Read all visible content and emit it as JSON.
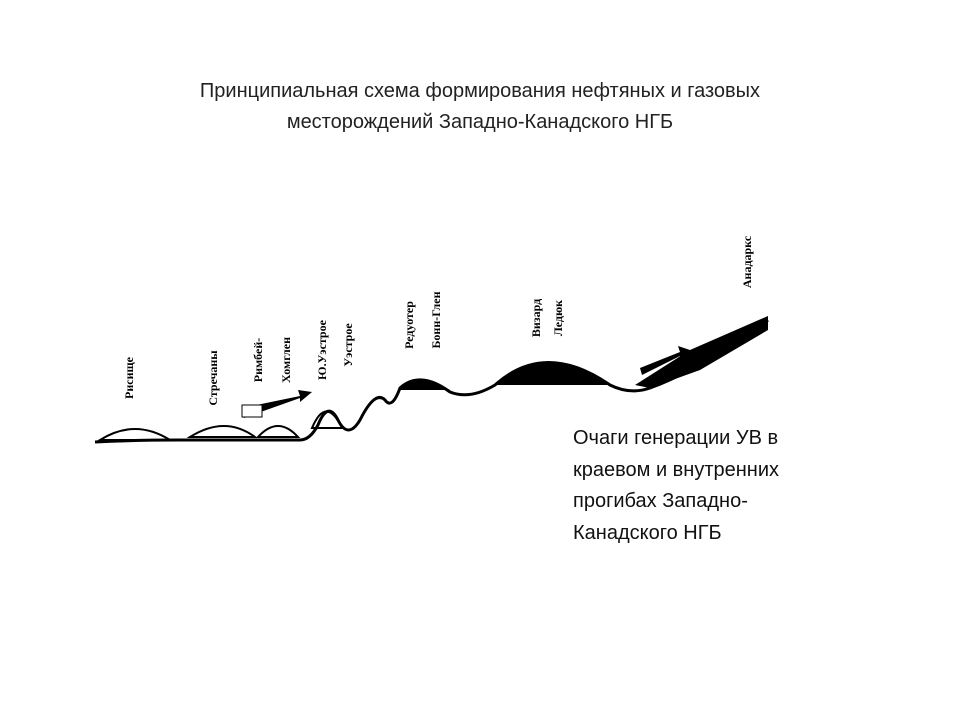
{
  "title": {
    "lines": [
      "Принципиальная схема формирования нефтяных и газовых",
      "месторождений  Западно-Канадского НГБ"
    ]
  },
  "diagram": {
    "labels": [
      "Рисище",
      "Стречаны",
      "Римбей-",
      "Хомглен",
      "Ю.Уэстрое",
      "Уэстрое",
      "Редуотер",
      "Бонн-Глен",
      "Визард",
      "Ледюк",
      "Анадаркс"
    ]
  },
  "caption": {
    "lines": [
      "Очаги генерации УВ в",
      "краевом и внутренних",
      "прогибах Западно-",
      "Канадского НГБ"
    ]
  }
}
